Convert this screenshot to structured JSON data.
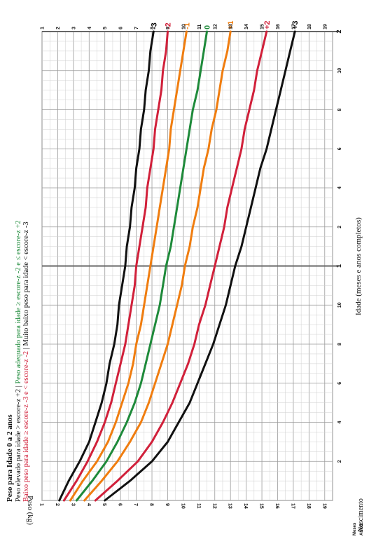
{
  "chart_data": {
    "type": "line",
    "title": "Peso para Idade 0 a 2 anos",
    "legend": [
      {
        "text": "Peso elevado para idade > escore-z +2",
        "color": "#111111"
      },
      {
        "text": " | ",
        "color": "#111111"
      },
      {
        "text": "Peso adequado para idade ≥ escore-z -2 e ≤ escore-z +2",
        "color": "#1e8a3a"
      },
      {
        "text": "Baixo peso para idade ≥ escore-z -3 e < escore-z -2",
        "color": "#d1203a"
      },
      {
        "text": " | Muito baixo peso para idade < escore-z -3",
        "color": "#111111"
      }
    ],
    "xlabel": "Idade (meses e anos completos)",
    "ylabel": "Peso (kg)",
    "x_birth_label": "Nascimento",
    "corner_label_top": "Meses",
    "corner_label_bottom": "ANOS",
    "x_month_ticks": [
      {
        "month": 2,
        "label": "2"
      },
      {
        "month": 4,
        "label": "4"
      },
      {
        "month": 6,
        "label": "6"
      },
      {
        "month": 8,
        "label": "8"
      },
      {
        "month": 10,
        "label": "10"
      },
      {
        "month": 12,
        "label": "1"
      },
      {
        "month": 14,
        "label": "2"
      },
      {
        "month": 16,
        "label": "4"
      },
      {
        "month": 18,
        "label": "6"
      },
      {
        "month": 20,
        "label": "8"
      },
      {
        "month": 22,
        "label": "10"
      },
      {
        "month": 24,
        "label": "2"
      }
    ],
    "year_ticks": [
      12,
      24
    ],
    "xlim": [
      0,
      24
    ],
    "ylim": [
      1,
      19.5
    ],
    "y_ticks": [
      "1",
      "2",
      "3",
      "4",
      "5",
      "6",
      "7",
      "8",
      "9",
      "10",
      "11",
      "12",
      "13",
      "14",
      "15",
      "16",
      "17",
      "18",
      "19"
    ],
    "grid": true,
    "series": [
      {
        "name": "+3",
        "color": "#111111",
        "x": [
          0,
          1,
          2,
          3,
          4,
          5,
          6,
          7,
          8,
          9,
          10,
          11,
          12,
          13,
          14,
          15,
          16,
          17,
          18,
          19,
          20,
          21,
          22,
          23,
          24
        ],
        "y": [
          5.0,
          6.6,
          8.0,
          9.0,
          9.7,
          10.4,
          10.9,
          11.4,
          11.9,
          12.3,
          12.7,
          13.0,
          13.3,
          13.7,
          14.0,
          14.3,
          14.6,
          14.9,
          15.3,
          15.6,
          15.9,
          16.2,
          16.5,
          16.8,
          17.1
        ]
      },
      {
        "name": "+2",
        "color": "#d1203a",
        "x": [
          0,
          1,
          2,
          3,
          4,
          5,
          6,
          7,
          8,
          9,
          10,
          11,
          12,
          13,
          14,
          15,
          16,
          17,
          18,
          19,
          20,
          21,
          22,
          23,
          24
        ],
        "y": [
          4.4,
          5.8,
          7.1,
          8.0,
          8.7,
          9.3,
          9.8,
          10.3,
          10.7,
          11.0,
          11.4,
          11.7,
          12.0,
          12.3,
          12.6,
          12.8,
          13.1,
          13.4,
          13.7,
          13.9,
          14.2,
          14.5,
          14.7,
          15.0,
          15.3
        ]
      },
      {
        "name": "+1",
        "color": "#f07d0f",
        "x": [
          0,
          1,
          2,
          3,
          4,
          5,
          6,
          7,
          8,
          9,
          10,
          11,
          12,
          13,
          14,
          15,
          16,
          17,
          18,
          19,
          20,
          21,
          22,
          23,
          24
        ],
        "y": [
          3.7,
          4.8,
          5.8,
          6.6,
          7.3,
          7.8,
          8.2,
          8.6,
          9.0,
          9.3,
          9.6,
          9.9,
          10.1,
          10.4,
          10.6,
          10.9,
          11.1,
          11.3,
          11.6,
          11.8,
          12.1,
          12.3,
          12.5,
          12.8,
          13.0
        ]
      },
      {
        "name": "0",
        "color": "#1e8a3a",
        "x": [
          0,
          1,
          2,
          3,
          4,
          5,
          6,
          7,
          8,
          9,
          10,
          11,
          12,
          13,
          14,
          15,
          16,
          17,
          18,
          19,
          20,
          21,
          22,
          23,
          24
        ],
        "y": [
          3.2,
          4.2,
          5.1,
          5.8,
          6.4,
          6.9,
          7.3,
          7.6,
          7.9,
          8.2,
          8.5,
          8.7,
          8.9,
          9.2,
          9.4,
          9.6,
          9.8,
          10.0,
          10.2,
          10.4,
          10.6,
          10.9,
          11.1,
          11.3,
          11.5
        ]
      },
      {
        "name": "-1",
        "color": "#f07d0f",
        "x": [
          0,
          1,
          2,
          3,
          4,
          5,
          6,
          7,
          8,
          9,
          10,
          11,
          12,
          13,
          14,
          15,
          16,
          17,
          18,
          19,
          20,
          21,
          22,
          23,
          24
        ],
        "y": [
          2.8,
          3.6,
          4.5,
          5.2,
          5.7,
          6.1,
          6.5,
          6.8,
          7.0,
          7.3,
          7.5,
          7.7,
          7.9,
          8.1,
          8.3,
          8.5,
          8.7,
          8.9,
          9.1,
          9.2,
          9.4,
          9.6,
          9.8,
          10.0,
          10.2
        ]
      },
      {
        "name": "-2",
        "color": "#d1203a",
        "x": [
          0,
          1,
          2,
          3,
          4,
          5,
          6,
          7,
          8,
          9,
          10,
          11,
          12,
          13,
          14,
          15,
          16,
          17,
          18,
          19,
          20,
          21,
          22,
          23,
          24
        ],
        "y": [
          2.4,
          3.2,
          3.9,
          4.5,
          5.0,
          5.4,
          5.7,
          6.0,
          6.3,
          6.5,
          6.7,
          6.9,
          7.0,
          7.2,
          7.4,
          7.6,
          7.7,
          7.9,
          8.1,
          8.2,
          8.4,
          8.6,
          8.7,
          8.9,
          9.0
        ]
      },
      {
        "name": "-3",
        "color": "#111111",
        "x": [
          0,
          1,
          2,
          3,
          4,
          5,
          6,
          7,
          8,
          9,
          10,
          11,
          12,
          13,
          14,
          15,
          16,
          17,
          18,
          19,
          20,
          21,
          22,
          23,
          24
        ],
        "y": [
          2.1,
          2.7,
          3.4,
          4.0,
          4.4,
          4.8,
          5.1,
          5.3,
          5.6,
          5.8,
          5.9,
          6.1,
          6.3,
          6.4,
          6.6,
          6.7,
          6.9,
          7.0,
          7.2,
          7.3,
          7.5,
          7.6,
          7.8,
          7.9,
          8.1
        ]
      }
    ]
  }
}
